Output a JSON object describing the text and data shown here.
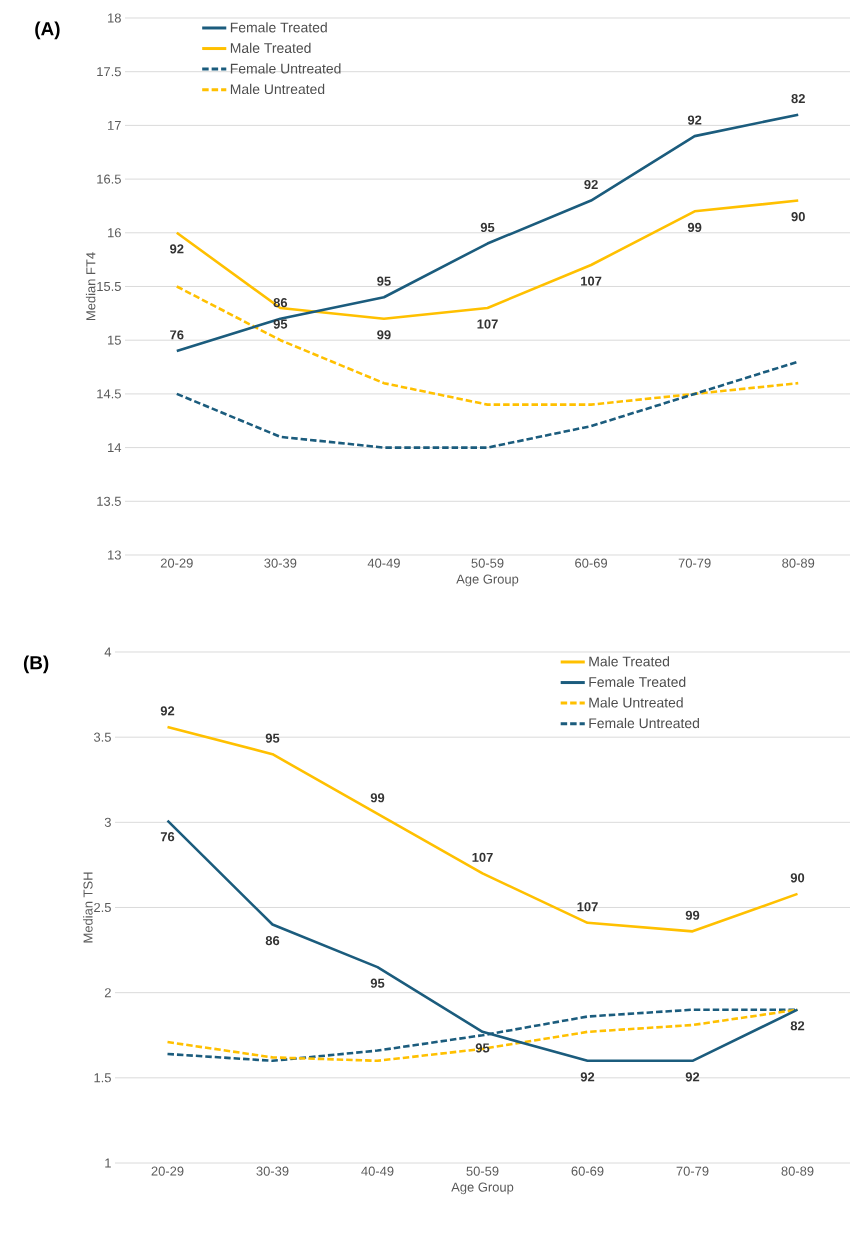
{
  "chart_data": [
    {
      "type": "line",
      "title": "(A)",
      "xlabel": "Age Group",
      "ylabel": "Median FT4",
      "categories": [
        "20-29",
        "30-39",
        "40-49",
        "50-59",
        "60-69",
        "70-79",
        "80-89"
      ],
      "ylim": [
        13,
        18
      ],
      "yticks": [
        13,
        13.5,
        14,
        14.5,
        15,
        15.5,
        16,
        16.5,
        17,
        17.5,
        18
      ],
      "grid": "y",
      "legend": "top left",
      "marker": "none",
      "series": [
        {
          "name": "Female Treated",
          "color": "#1b5c7d",
          "line_style": "solid",
          "values": [
            14.9,
            15.2,
            15.4,
            15.9,
            16.3,
            16.9,
            17.1
          ]
        },
        {
          "name": "Male Treated",
          "color": "#ffc000",
          "line_style": "solid",
          "values": [
            16.0,
            15.3,
            15.2,
            15.3,
            15.7,
            16.2,
            16.3
          ]
        },
        {
          "name": "Female Untreated",
          "color": "#1b5c7d",
          "line_style": "dashed",
          "values": [
            14.5,
            14.1,
            14.0,
            14.0,
            14.2,
            14.5,
            14.8
          ]
        },
        {
          "name": "Male Untreated",
          "color": "#ffc000",
          "line_style": "dashed",
          "values": [
            15.5,
            15.0,
            14.6,
            14.4,
            14.4,
            14.5,
            14.6
          ]
        }
      ],
      "annotations": [
        {
          "text": "76",
          "x": "20-29",
          "y": 14.9
        },
        {
          "text": "86",
          "x": "30-39",
          "y": 15.2
        },
        {
          "text": "95",
          "x": "40-49",
          "y": 15.4
        },
        {
          "text": "95",
          "x": "50-59",
          "y": 15.9
        },
        {
          "text": "92",
          "x": "60-69",
          "y": 16.3
        },
        {
          "text": "92",
          "x": "70-79",
          "y": 16.9
        },
        {
          "text": "82",
          "x": "80-89",
          "y": 17.1
        },
        {
          "text": "92",
          "x": "20-29",
          "y": 16.0
        },
        {
          "text": "95",
          "x": "30-39",
          "y": 15.3
        },
        {
          "text": "99",
          "x": "40-49",
          "y": 15.2
        },
        {
          "text": "107",
          "x": "50-59",
          "y": 15.3
        },
        {
          "text": "107",
          "x": "60-69",
          "y": 15.7
        },
        {
          "text": "99",
          "x": "70-79",
          "y": 16.2
        },
        {
          "text": "90",
          "x": "80-89",
          "y": 16.3
        }
      ]
    },
    {
      "type": "line",
      "title": "(B)",
      "xlabel": "Age Group",
      "ylabel": "Median TSH",
      "categories": [
        "20-29",
        "30-39",
        "40-49",
        "50-59",
        "60-69",
        "70-79",
        "80-89"
      ],
      "ylim": [
        1,
        4
      ],
      "yticks": [
        1,
        1.5,
        2,
        2.5,
        3,
        3.5,
        4
      ],
      "grid": "y",
      "legend": "top right",
      "marker": "none",
      "series": [
        {
          "name": "Male Treated",
          "color": "#ffc000",
          "line_style": "solid",
          "values": [
            3.56,
            3.4,
            3.05,
            2.7,
            2.41,
            2.36,
            2.58
          ]
        },
        {
          "name": "Female Treated",
          "color": "#1b5c7d",
          "line_style": "solid",
          "values": [
            3.01,
            2.4,
            2.15,
            1.77,
            1.6,
            1.6,
            1.9
          ]
        },
        {
          "name": "Male Untreated",
          "color": "#ffc000",
          "line_style": "dashed",
          "values": [
            1.71,
            1.62,
            1.6,
            1.67,
            1.77,
            1.81,
            1.9
          ]
        },
        {
          "name": "Female Untreated",
          "color": "#1b5c7d",
          "line_style": "dashed",
          "values": [
            1.64,
            1.6,
            1.66,
            1.75,
            1.86,
            1.9,
            1.9
          ]
        }
      ],
      "annotations": [
        {
          "text": "92",
          "x": "20-29",
          "y": 3.56
        },
        {
          "text": "95",
          "x": "30-39",
          "y": 3.4
        },
        {
          "text": "99",
          "x": "40-49",
          "y": 3.05
        },
        {
          "text": "107",
          "x": "50-59",
          "y": 2.7
        },
        {
          "text": "107",
          "x": "60-69",
          "y": 2.41
        },
        {
          "text": "99",
          "x": "70-79",
          "y": 2.36
        },
        {
          "text": "90",
          "x": "80-89",
          "y": 2.58
        },
        {
          "text": "76",
          "x": "20-29",
          "y": 3.01
        },
        {
          "text": "86",
          "x": "30-39",
          "y": 2.4
        },
        {
          "text": "95",
          "x": "40-49",
          "y": 2.15
        },
        {
          "text": "95",
          "x": "50-59",
          "y": 1.77
        },
        {
          "text": "92",
          "x": "60-69",
          "y": 1.6
        },
        {
          "text": "92",
          "x": "70-79",
          "y": 1.6
        },
        {
          "text": "82",
          "x": "80-89",
          "y": 1.9
        }
      ]
    }
  ]
}
